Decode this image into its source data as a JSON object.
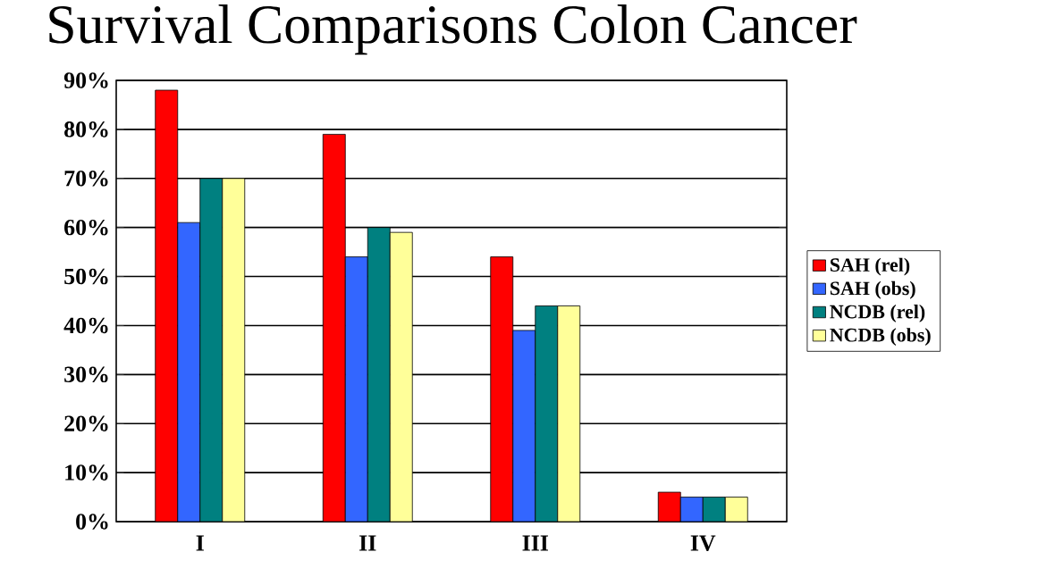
{
  "chart_data": {
    "type": "bar",
    "title": "Survival Comparisons Colon Cancer",
    "categories": [
      "I",
      "II",
      "III",
      "IV"
    ],
    "series": [
      {
        "name": "SAH (rel)",
        "color": "#ff0000",
        "values": [
          88,
          79,
          54,
          6
        ]
      },
      {
        "name": "SAH (obs)",
        "color": "#3366ff",
        "values": [
          61,
          54,
          39,
          5
        ]
      },
      {
        "name": "NCDB (rel)",
        "color": "#008080",
        "values": [
          70,
          60,
          44,
          5
        ]
      },
      {
        "name": "NCDB (obs)",
        "color": "#ffff99",
        "values": [
          70,
          59,
          44,
          5
        ]
      }
    ],
    "ylim": [
      0,
      90
    ],
    "yticks": [
      {
        "value": 0,
        "label": "0%"
      },
      {
        "value": 10,
        "label": "10%"
      },
      {
        "value": 20,
        "label": "20%"
      },
      {
        "value": 30,
        "label": "30%"
      },
      {
        "value": 40,
        "label": "40%"
      },
      {
        "value": 50,
        "label": "50%"
      },
      {
        "value": 60,
        "label": "60%"
      },
      {
        "value": 70,
        "label": "70%"
      },
      {
        "value": 80,
        "label": "80%"
      },
      {
        "value": 90,
        "label": "90%"
      }
    ],
    "grid": "y",
    "legend": "right"
  }
}
